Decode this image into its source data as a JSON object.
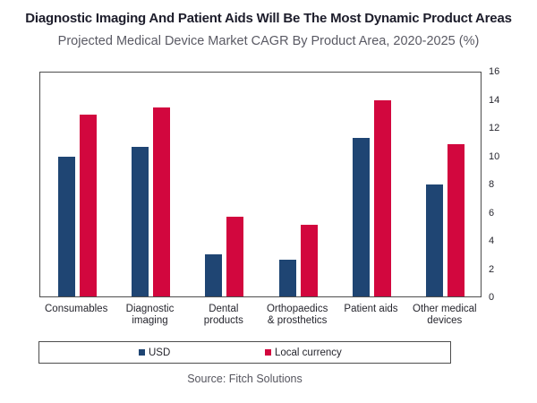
{
  "chart_data": {
    "type": "bar",
    "title": "Diagnostic Imaging And Patient Aids Will Be The Most Dynamic Product Areas",
    "subtitle": "Projected Medical Device Market CAGR By Product Area, 2020-2025 (%)",
    "categories": [
      "Consumables",
      "Diagnostic imaging",
      "Dental products",
      "Orthopaedics & prosthetics",
      "Patient aids",
      "Other medical devices"
    ],
    "x_tick_lines": [
      [
        "Consumables"
      ],
      [
        "Diagnostic",
        "imaging"
      ],
      [
        "Dental",
        "products"
      ],
      [
        "Orthopaedics",
        "& prosthetics"
      ],
      [
        "Patient aids"
      ],
      [
        "Other medical",
        "devices"
      ]
    ],
    "series": [
      {
        "name": "USD",
        "color": "#1f4573",
        "values": [
          10.0,
          10.7,
          3.0,
          2.6,
          11.3,
          8.0
        ]
      },
      {
        "name": "Local currency",
        "color": "#d2073e",
        "values": [
          13.0,
          13.5,
          5.7,
          5.1,
          14.0,
          10.9
        ]
      }
    ],
    "ylim": [
      0,
      16
    ],
    "yticks": [
      0,
      2,
      4,
      6,
      8,
      10,
      12,
      14,
      16
    ],
    "ytick_side": "right",
    "grid": false,
    "legend_position": "bottom"
  },
  "footer": {
    "source": "Source: Fitch Solutions"
  }
}
